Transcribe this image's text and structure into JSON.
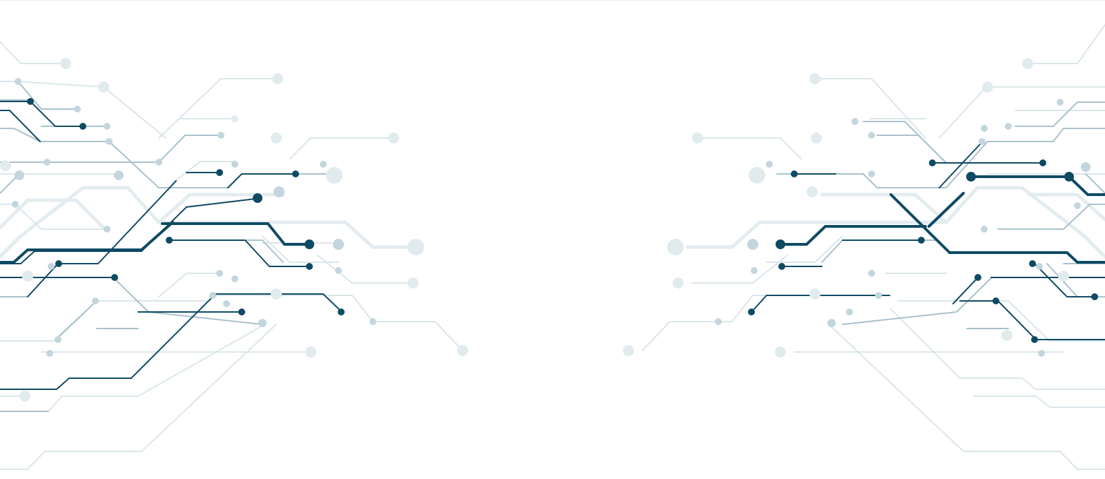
{
  "artwork": {
    "theme": "circuit-board traces",
    "colors": {
      "dark": "#0e4a63",
      "mid": "#7fa2b2",
      "light": "#c9d9e0",
      "faint": "#e6eef1",
      "background": "#ffffff"
    }
  }
}
